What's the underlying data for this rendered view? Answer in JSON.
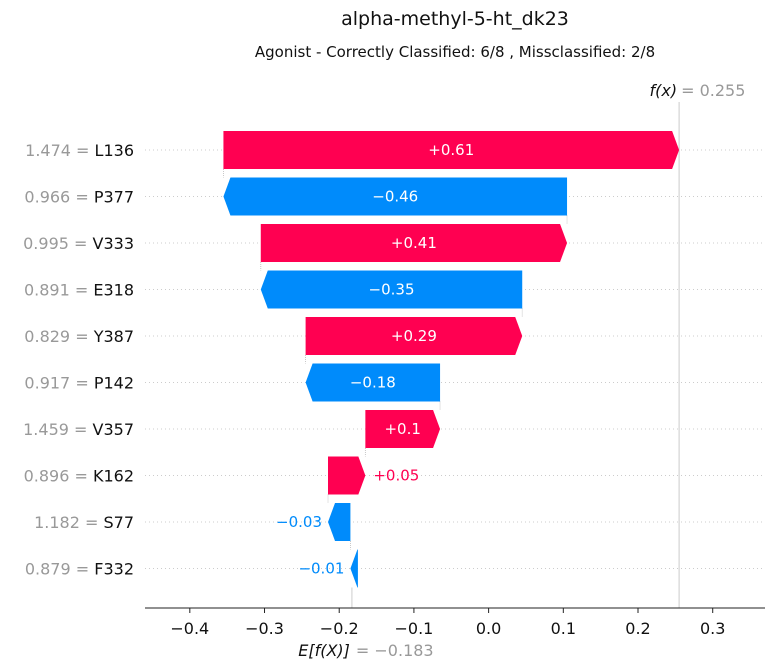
{
  "chart_data": {
    "type": "waterfall",
    "title": "alpha-methyl-5-ht_dk23",
    "subtitle": "Agonist - Correctly Classified: 6/8 , Missclassified: 2/8",
    "fx_label": "f(x)",
    "fx_value": 0.255,
    "fx_value_text": "= 0.255",
    "base_label": "E[f(X)]",
    "base_value": -0.183,
    "base_value_text": "= −0.183",
    "xlim": [
      -0.46,
      0.37
    ],
    "xticks": [
      -0.4,
      -0.3,
      -0.2,
      -0.1,
      0.0,
      0.1,
      0.2,
      0.3
    ],
    "xtick_labels": [
      "−0.4",
      "−0.3",
      "−0.2",
      "−0.1",
      "0.0",
      "0.1",
      "0.2",
      "0.3"
    ],
    "colors": {
      "positive": "#ff0051",
      "negative": "#008bfb",
      "axis_gray": "#999999"
    },
    "features": [
      {
        "value": "1.474",
        "name": "L136",
        "contribution": 0.61,
        "label": "+0.61"
      },
      {
        "value": "0.966",
        "name": "P377",
        "contribution": -0.46,
        "label": "−0.46"
      },
      {
        "value": "0.995",
        "name": "V333",
        "contribution": 0.41,
        "label": "+0.41"
      },
      {
        "value": "0.891",
        "name": "E318",
        "contribution": -0.35,
        "label": "−0.35"
      },
      {
        "value": "0.829",
        "name": "Y387",
        "contribution": 0.29,
        "label": "+0.29"
      },
      {
        "value": "0.917",
        "name": "P142",
        "contribution": -0.18,
        "label": "−0.18"
      },
      {
        "value": "1.459",
        "name": "V357",
        "contribution": 0.1,
        "label": "+0.1"
      },
      {
        "value": "0.896",
        "name": "K162",
        "contribution": 0.05,
        "label": "+0.05"
      },
      {
        "value": "1.182",
        "name": "S77",
        "contribution": -0.03,
        "label": "−0.03"
      },
      {
        "value": "0.879",
        "name": "F332",
        "contribution": -0.01,
        "label": "−0.01"
      }
    ]
  }
}
